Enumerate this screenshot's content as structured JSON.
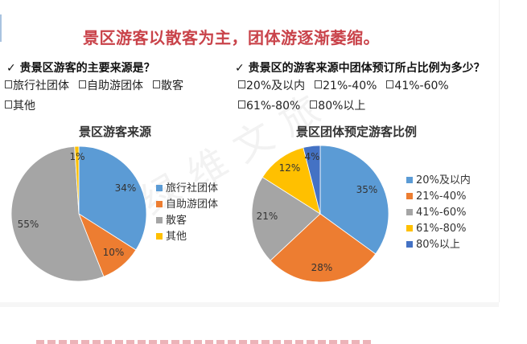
{
  "page": {
    "title": "景区游客以散客为主，团体游逐渐萎缩。",
    "watermark": "绿维文旅",
    "colors": {
      "title": "#c9434a",
      "blue": "#5b9bd5",
      "orange": "#ed7d31",
      "gray": "#a5a5a5",
      "yellow": "#ffc000",
      "dark_blue": "#4472c4"
    }
  },
  "left": {
    "question": "✓ 贵景区游客的主要来源是？",
    "options": [
      "旅行社团体",
      "自助游团体",
      "散客",
      "其他"
    ]
  },
  "right": {
    "question": "✓ 贵景区的游客来源中团体预订所占比例为多少？",
    "options": [
      "20%及以内",
      "21%-40%",
      "41%-60%",
      "61%-80%",
      "80%以上"
    ]
  },
  "chart_data": [
    {
      "type": "pie",
      "title": "景区游客来源",
      "categories": [
        "旅行社团体",
        "自助游团体",
        "散客",
        "其他"
      ],
      "values": [
        34,
        10,
        55,
        1
      ],
      "labels": [
        "34%",
        "10%",
        "55%",
        "1%"
      ],
      "colors": [
        "#5b9bd5",
        "#ed7d31",
        "#a5a5a5",
        "#ffc000"
      ],
      "legend_position": "right",
      "start_angle": "12 o'clock, clockwise"
    },
    {
      "type": "pie",
      "title": "景区团体预定游客比例",
      "categories": [
        "20%及以内",
        "21%-40%",
        "41%-60%",
        "61%-80%",
        "80%以上"
      ],
      "values": [
        35,
        28,
        21,
        12,
        4
      ],
      "labels": [
        "35%",
        "28%",
        "21%",
        "12%",
        "4%"
      ],
      "colors": [
        "#5b9bd5",
        "#ed7d31",
        "#a5a5a5",
        "#ffc000",
        "#4472c4"
      ],
      "legend_position": "right",
      "start_angle": "12 o'clock, clockwise"
    }
  ]
}
